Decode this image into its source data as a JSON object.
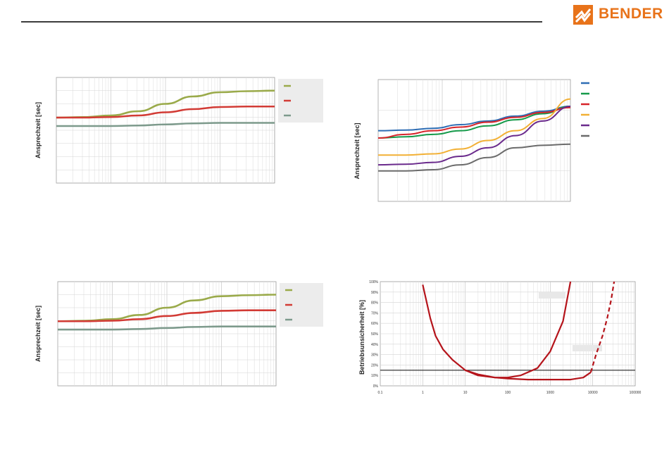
{
  "header": {
    "brand": "BENDER",
    "brand_color": "#e8731a",
    "logo_icon": "bender-logo-icon"
  },
  "chart_data": [
    {
      "type": "line",
      "xscale": "log",
      "ylabel": "Ansprechzeit [sec]",
      "grid": true,
      "legend_position": "right",
      "series": [
        {
          "color": "#9aaa4a",
          "values": [
            0.62,
            0.625,
            0.64,
            0.68,
            0.75,
            0.82,
            0.86,
            0.87,
            0.875
          ]
        },
        {
          "color": "#d23b35",
          "values": [
            0.62,
            0.62,
            0.625,
            0.64,
            0.67,
            0.7,
            0.72,
            0.725,
            0.725
          ]
        },
        {
          "color": "#7d9a8c",
          "values": [
            0.54,
            0.54,
            0.54,
            0.545,
            0.555,
            0.565,
            0.57,
            0.57,
            0.57
          ]
        }
      ]
    },
    {
      "type": "line",
      "xscale": "log",
      "ylabel": "Ansprechzeit [sec]",
      "grid": true,
      "legend_position": "right",
      "series": [
        {
          "color": "#2e6db4",
          "values": [
            0.58,
            0.585,
            0.6,
            0.63,
            0.66,
            0.7,
            0.74,
            0.78
          ]
        },
        {
          "color": "#159a4a",
          "values": [
            0.52,
            0.53,
            0.55,
            0.58,
            0.62,
            0.67,
            0.72,
            0.78
          ]
        },
        {
          "color": "#d7242a",
          "values": [
            0.52,
            0.55,
            0.58,
            0.61,
            0.65,
            0.69,
            0.73,
            0.77
          ]
        },
        {
          "color": "#f2b035",
          "values": [
            0.38,
            0.38,
            0.39,
            0.43,
            0.5,
            0.58,
            0.68,
            0.84
          ]
        },
        {
          "color": "#6a2a8c",
          "values": [
            0.3,
            0.305,
            0.32,
            0.37,
            0.44,
            0.54,
            0.66,
            0.78
          ]
        },
        {
          "color": "#6b6b6b",
          "values": [
            0.25,
            0.25,
            0.26,
            0.3,
            0.36,
            0.44,
            0.46,
            0.47
          ]
        }
      ]
    },
    {
      "type": "line",
      "xscale": "log",
      "ylabel": "Ansprechzeit [sec]",
      "grid": true,
      "legend_position": "right",
      "series": [
        {
          "color": "#9aaa4a",
          "values": [
            0.62,
            0.625,
            0.64,
            0.68,
            0.75,
            0.82,
            0.86,
            0.87,
            0.875
          ]
        },
        {
          "color": "#d23b35",
          "values": [
            0.62,
            0.62,
            0.625,
            0.64,
            0.67,
            0.7,
            0.72,
            0.725,
            0.725
          ]
        },
        {
          "color": "#7d9a8c",
          "values": [
            0.54,
            0.54,
            0.54,
            0.545,
            0.555,
            0.565,
            0.57,
            0.57,
            0.57
          ]
        }
      ]
    },
    {
      "type": "line",
      "xscale": "log",
      "ylabel": "Betriebsunsicherheit [%]",
      "grid": true,
      "x_ticks": [
        "0.1",
        "1",
        "10",
        "100",
        "1000",
        "10000",
        "100000"
      ],
      "y_ticks": [
        "0%",
        "10%",
        "20%",
        "30%",
        "40%",
        "50%",
        "60%",
        "70%",
        "80%",
        "90%",
        "100%"
      ],
      "xlim": [
        0.1,
        100000
      ],
      "ylim": [
        0,
        100
      ],
      "reference_line": 15,
      "series": [
        {
          "color": "#b5141b",
          "style": "solid",
          "x": [
            1,
            1.5,
            2,
            3,
            5,
            10,
            20,
            50,
            100,
            200,
            500,
            1000,
            2000,
            3000
          ],
          "y": [
            97,
            65,
            48,
            35,
            25,
            15,
            11,
            8,
            8,
            10,
            17,
            33,
            62,
            100
          ]
        },
        {
          "color": "#b5141b",
          "style": "solid",
          "x": [
            10,
            20,
            50,
            100,
            300,
            1000,
            3000,
            6000,
            9000
          ],
          "y": [
            15,
            10,
            8,
            7,
            6,
            6,
            6,
            8,
            13
          ]
        },
        {
          "color": "#b5141b",
          "style": "dashed",
          "x": [
            9000,
            12000,
            17000,
            22000,
            27000,
            32000
          ],
          "y": [
            13,
            30,
            48,
            65,
            82,
            100
          ]
        }
      ]
    }
  ]
}
